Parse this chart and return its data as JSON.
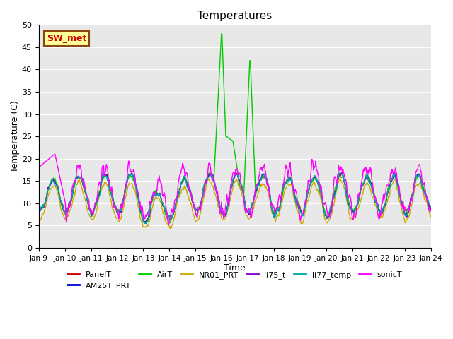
{
  "title": "Temperatures",
  "xlabel": "Time",
  "ylabel": "Temperature (C)",
  "ylim": [
    0,
    50
  ],
  "yticks": [
    0,
    5,
    10,
    15,
    20,
    25,
    30,
    35,
    40,
    45,
    50
  ],
  "n_days": 15,
  "x_labels": [
    "Jan 9",
    "Jan 10",
    "Jan 11",
    "Jan 12",
    "Jan 13",
    "Jan 14",
    "Jan 15",
    "Jan 16",
    "Jan 17",
    "Jan 18",
    "Jan 19",
    "Jan 20",
    "Jan 21",
    "Jan 22",
    "Jan 23",
    "Jan 24"
  ],
  "series": {
    "PanelT": {
      "color": "#cc0000",
      "lw": 1.0
    },
    "AM25T_PRT": {
      "color": "#0000cc",
      "lw": 1.0
    },
    "AirT": {
      "color": "#00cc00",
      "lw": 1.0
    },
    "NR01_PRT": {
      "color": "#ccaa00",
      "lw": 1.0
    },
    "li75_t": {
      "color": "#8800cc",
      "lw": 1.0
    },
    "li77_temp": {
      "color": "#00aaaa",
      "lw": 1.0
    },
    "sonicT": {
      "color": "#ff00ff",
      "lw": 1.0
    }
  },
  "series_order": [
    "PanelT",
    "AM25T_PRT",
    "AirT",
    "NR01_PRT",
    "li75_t",
    "li77_temp",
    "sonicT"
  ],
  "legend_label": "SW_met",
  "legend_color": "#cc0000",
  "legend_bg": "#ffff99",
  "background_color": "#e8e8e8",
  "title_fontsize": 11,
  "axis_fontsize": 9
}
